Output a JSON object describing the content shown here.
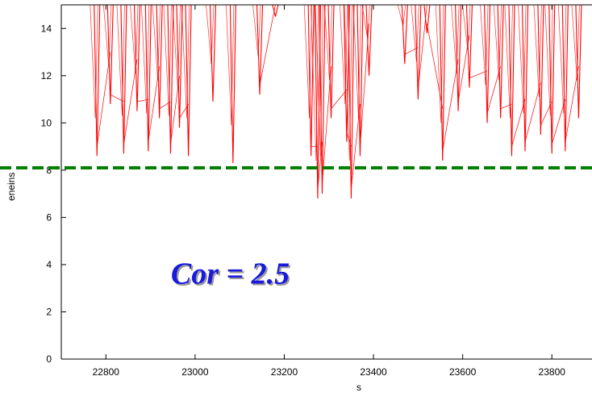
{
  "chart_data": {
    "type": "line",
    "xlabel": "s",
    "ylabel": "eneins",
    "xlim": [
      22700,
      23890
    ],
    "ylim": [
      0,
      15
    ],
    "xticks": [
      22800,
      23000,
      23200,
      23400,
      23600,
      23800
    ],
    "yticks": [
      0,
      2,
      4,
      6,
      8,
      10,
      12,
      14
    ],
    "series": [
      {
        "color": "#ff0000",
        "dips": [
          {
            "x": 22780,
            "min": 8.6
          },
          {
            "x": 22810,
            "min": 10.8
          },
          {
            "x": 22840,
            "min": 8.7
          },
          {
            "x": 22870,
            "min": 10.5
          },
          {
            "x": 22895,
            "min": 8.8
          },
          {
            "x": 22920,
            "min": 10.2
          },
          {
            "x": 22945,
            "min": 8.7
          },
          {
            "x": 22965,
            "min": 9.8
          },
          {
            "x": 22985,
            "min": 8.6
          },
          {
            "x": 23040,
            "min": 10.9
          },
          {
            "x": 23085,
            "min": 8.3
          },
          {
            "x": 23145,
            "min": 11.2
          },
          {
            "x": 23180,
            "min": 14.5
          },
          {
            "x": 23260,
            "min": 8.6
          },
          {
            "x": 23275,
            "min": 6.8
          },
          {
            "x": 23285,
            "min": 7.0
          },
          {
            "x": 23305,
            "min": 10.2
          },
          {
            "x": 23340,
            "min": 9.2
          },
          {
            "x": 23350,
            "min": 6.8
          },
          {
            "x": 23370,
            "min": 8.6
          },
          {
            "x": 23390,
            "min": 12.0
          },
          {
            "x": 23470,
            "min": 12.5
          },
          {
            "x": 23500,
            "min": 11.0
          },
          {
            "x": 23520,
            "min": 13.8
          },
          {
            "x": 23555,
            "min": 8.4
          },
          {
            "x": 23590,
            "min": 10.5
          },
          {
            "x": 23615,
            "min": 11.5
          },
          {
            "x": 23655,
            "min": 10.0
          },
          {
            "x": 23685,
            "min": 10.2
          },
          {
            "x": 23710,
            "min": 8.6
          },
          {
            "x": 23740,
            "min": 8.8
          },
          {
            "x": 23775,
            "min": 9.5
          },
          {
            "x": 23800,
            "min": 8.7
          },
          {
            "x": 23830,
            "min": 8.8
          },
          {
            "x": 23860,
            "min": 10.2
          }
        ]
      }
    ],
    "threshold": {
      "y": 8.1,
      "color": "#008000",
      "style": "dashed"
    },
    "annotation": {
      "text": "Cor = 2.5",
      "color": "#1a1adb",
      "x": 23000,
      "y": 3.2
    }
  }
}
